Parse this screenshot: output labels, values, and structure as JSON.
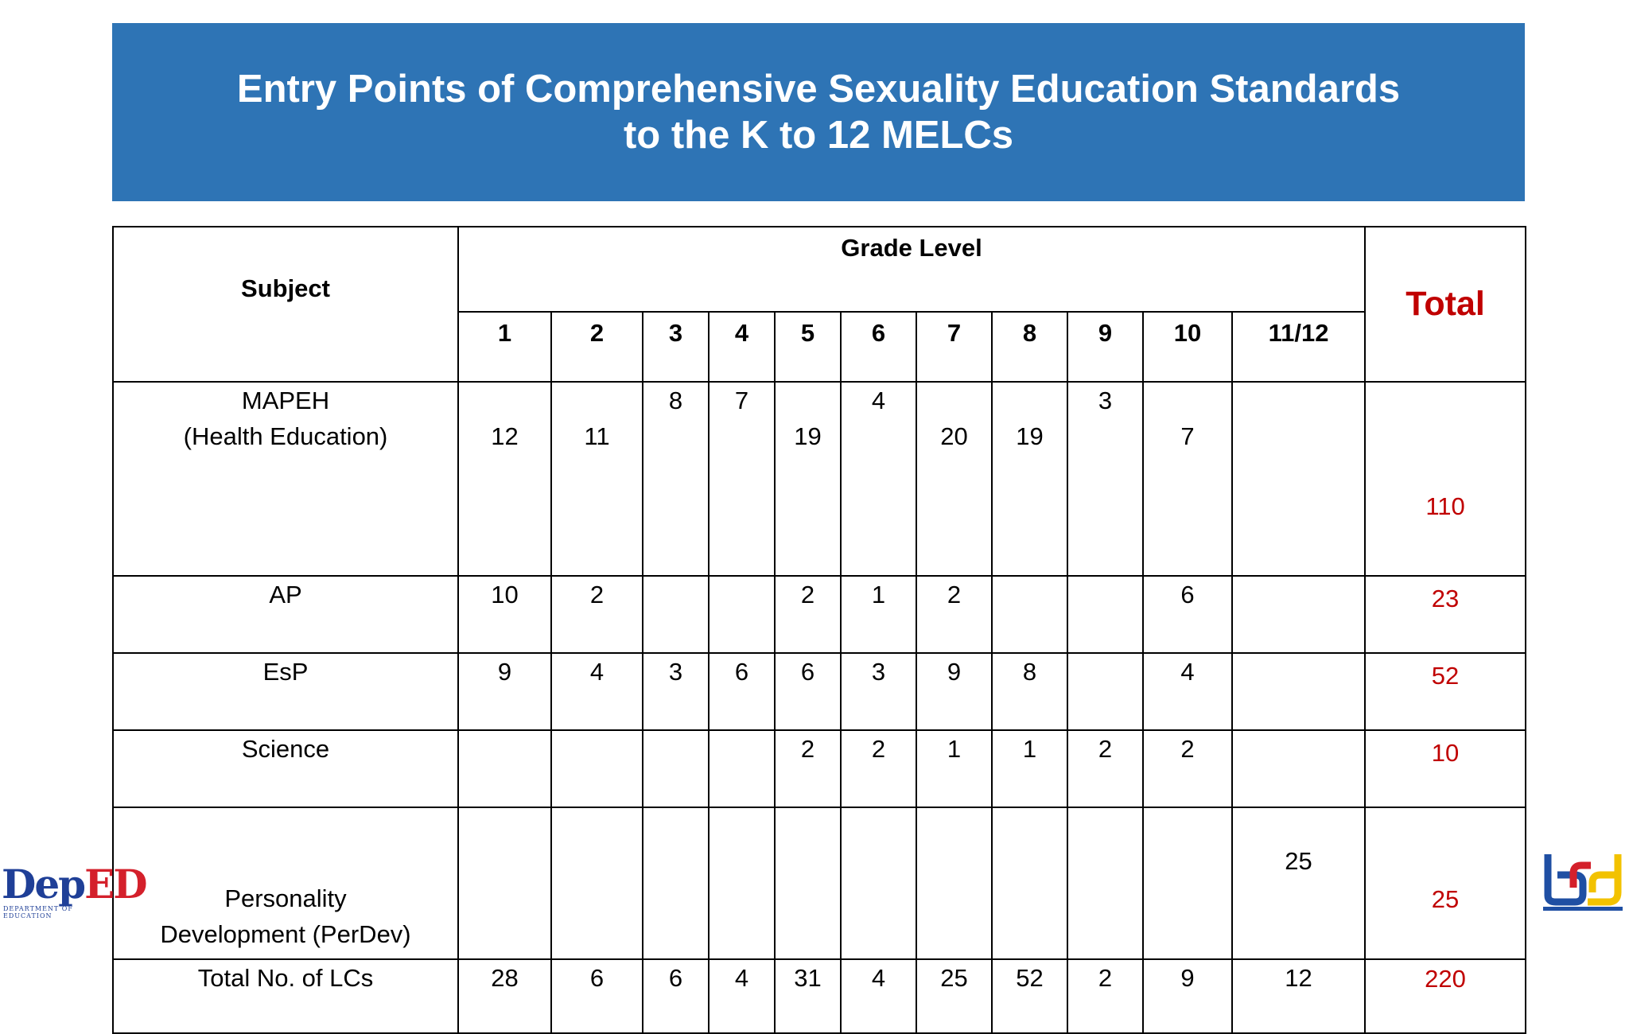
{
  "title": {
    "line1": "Entry Points of Comprehensive Sexuality Education Standards",
    "line2": "to the K to 12 MELCs"
  },
  "table": {
    "subject_header": "Subject",
    "grade_level_header": "Grade Level",
    "total_header": "Total",
    "grades": [
      "1",
      "2",
      "3",
      "4",
      "5",
      "6",
      "7",
      "8",
      "9",
      "10",
      "11/12"
    ],
    "rows": [
      {
        "subject_line1": "MAPEH",
        "subject_line2": "(Health Education)",
        "cells": [
          {
            "upper": "",
            "lower": "12"
          },
          {
            "upper": "",
            "lower": "11"
          },
          {
            "upper": "8",
            "lower": ""
          },
          {
            "upper": "7",
            "lower": ""
          },
          {
            "upper": "",
            "lower": "19"
          },
          {
            "upper": "4",
            "lower": ""
          },
          {
            "upper": "",
            "lower": "20"
          },
          {
            "upper": "",
            "lower": "19"
          },
          {
            "upper": "3",
            "lower": ""
          },
          {
            "upper": "",
            "lower": "7"
          },
          {
            "upper": "",
            "lower": ""
          }
        ],
        "total": "110"
      },
      {
        "subject": "AP",
        "cells": [
          "10",
          "2",
          "",
          "",
          "2",
          "1",
          "2",
          "",
          "",
          "6",
          ""
        ],
        "total": "23"
      },
      {
        "subject": "EsP",
        "cells": [
          "9",
          "4",
          "3",
          "6",
          "6",
          "3",
          "9",
          "8",
          "",
          "4",
          ""
        ],
        "total": "52"
      },
      {
        "subject": "Science",
        "cells": [
          "",
          "",
          "",
          "",
          "2",
          "2",
          "1",
          "1",
          "2",
          "2",
          ""
        ],
        "total": "10"
      },
      {
        "subject_line1": "Personality",
        "subject_line2": "Development (PerDev)",
        "cells": [
          "",
          "",
          "",
          "",
          "",
          "",
          "",
          "",
          "",
          "",
          "25"
        ],
        "total": "25"
      },
      {
        "subject": "Total No. of LCs",
        "cells": [
          "28",
          "6",
          "6",
          "4",
          "31",
          "4",
          "25",
          "52",
          "2",
          "9",
          "12"
        ],
        "total": "220"
      }
    ]
  },
  "logos": {
    "left": {
      "icon": "deped-logo-icon",
      "text_main": "Dep",
      "text_accent": "ED",
      "subtext": "DEPARTMENT OF EDUCATION"
    },
    "right": {
      "icon": "bcd-logo-icon"
    }
  },
  "colors": {
    "banner": "#2e74b5",
    "total_red": "#c00000",
    "deped_blue": "#1f3f97",
    "deped_red": "#d4202b"
  }
}
